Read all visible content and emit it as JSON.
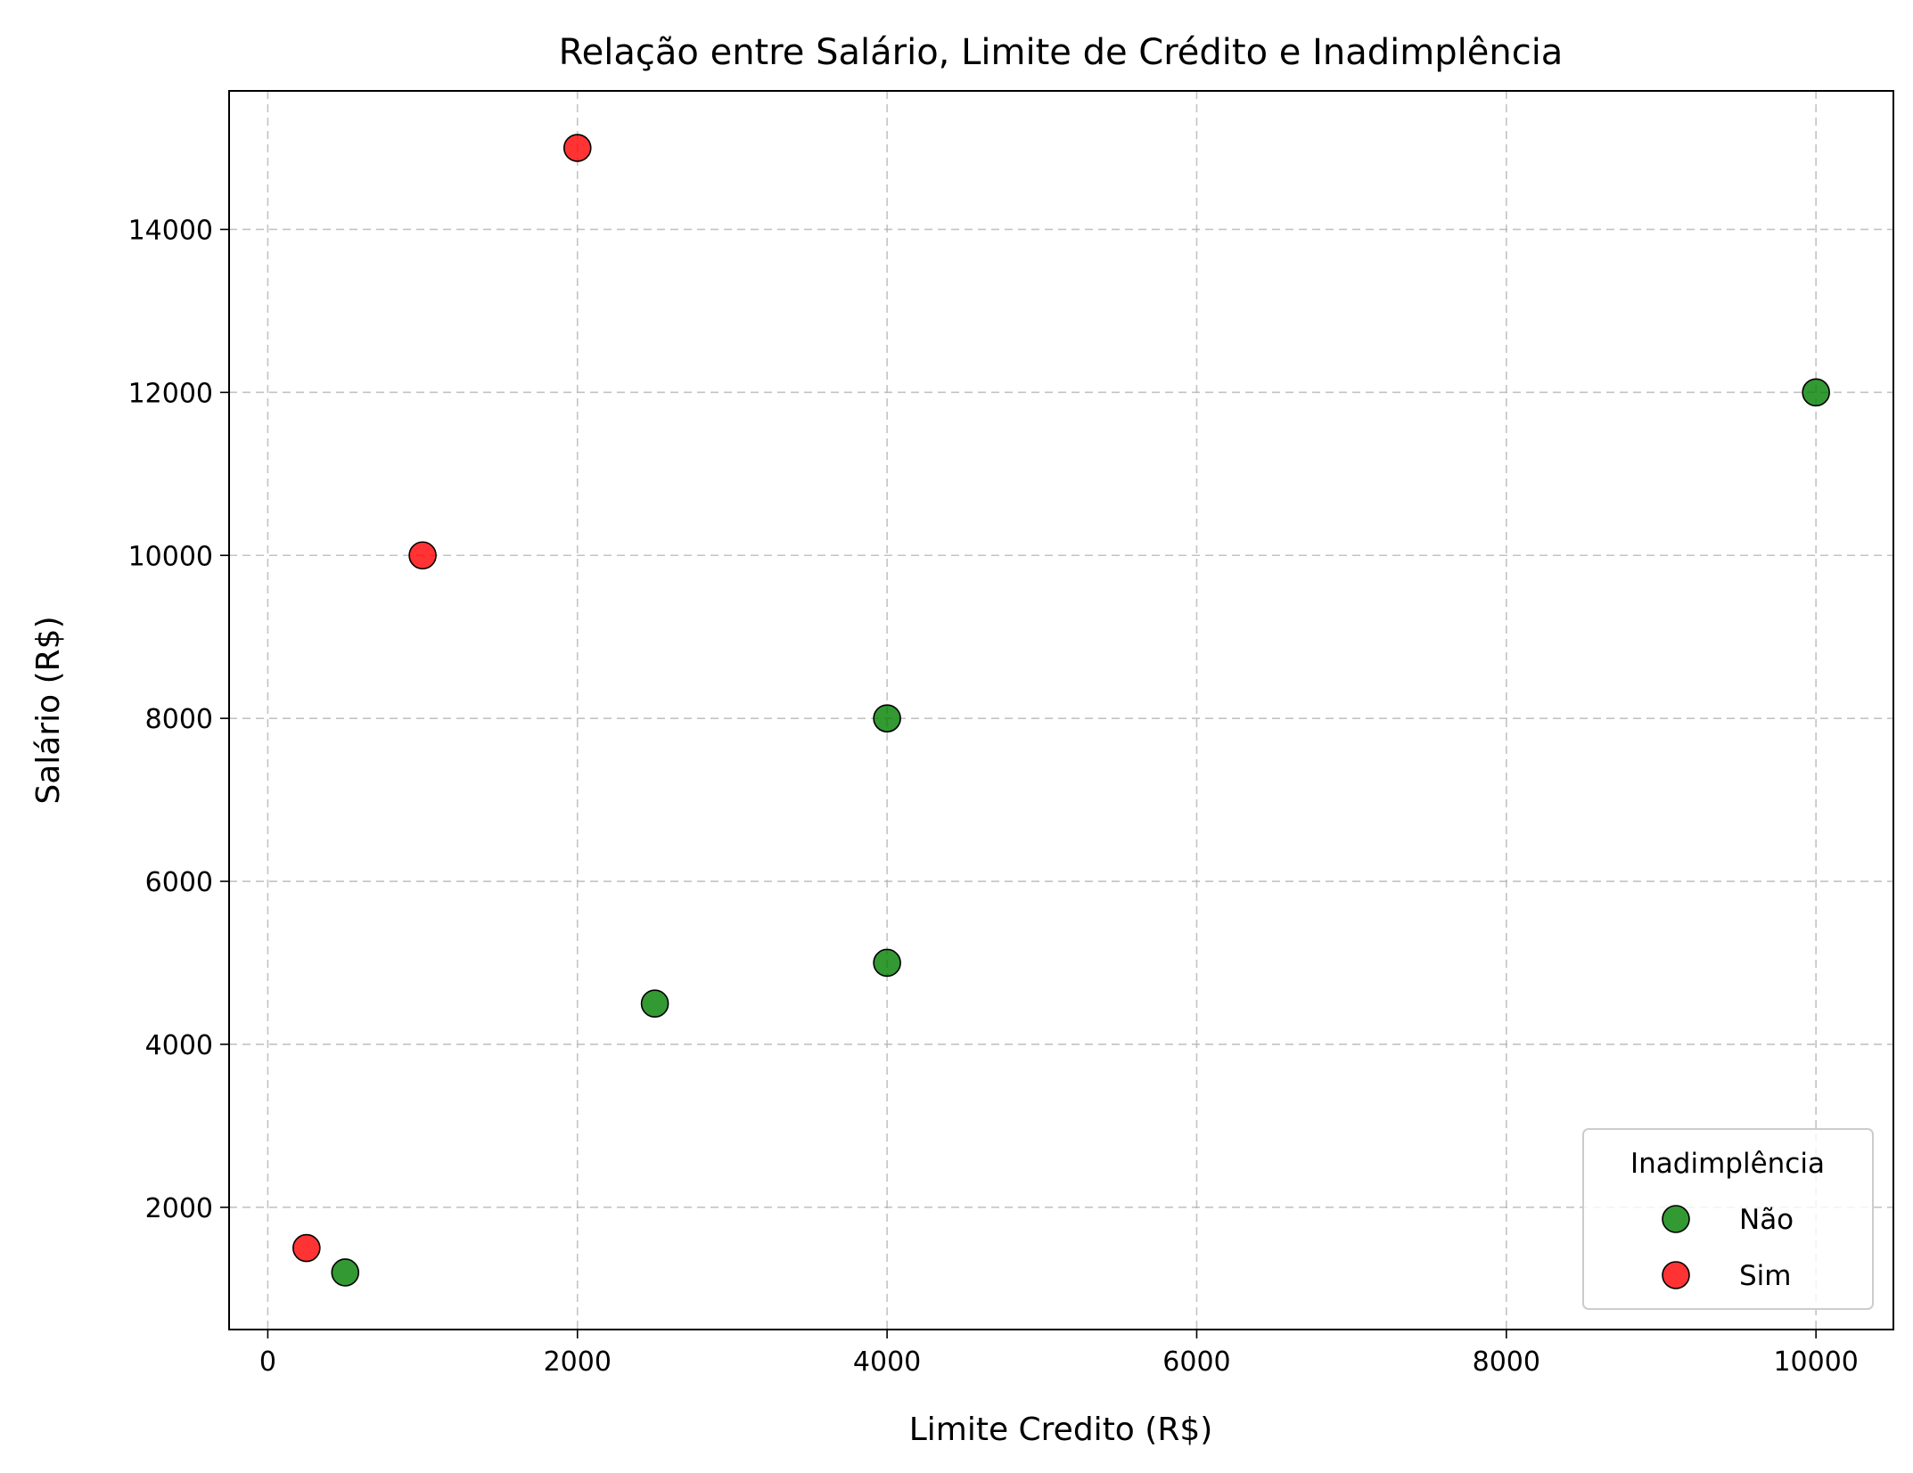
{
  "chart_data": {
    "type": "scatter",
    "title": "Relação entre Salário, Limite de Crédito e Inadimplência",
    "xlabel": "Limite Credito (R$)",
    "ylabel": "Salário (R$)",
    "xlim": [
      -250,
      10500
    ],
    "ylim": [
      500,
      15700
    ],
    "xticks": [
      0,
      2000,
      4000,
      6000,
      8000,
      10000
    ],
    "yticks": [
      2000,
      4000,
      6000,
      8000,
      10000,
      12000,
      14000
    ],
    "grid": true,
    "legend": {
      "title": "Inadimplência",
      "placement": "lower-right"
    },
    "series": [
      {
        "name": "Não",
        "color": "#008000",
        "points": [
          {
            "x": 500,
            "y": 1200
          },
          {
            "x": 2500,
            "y": 4500
          },
          {
            "x": 4000,
            "y": 5000
          },
          {
            "x": 4000,
            "y": 8000
          },
          {
            "x": 10000,
            "y": 12000
          }
        ]
      },
      {
        "name": "Sim",
        "color": "#ff0000",
        "points": [
          {
            "x": 250,
            "y": 1500
          },
          {
            "x": 1000,
            "y": 10000
          },
          {
            "x": 2000,
            "y": 15000
          }
        ]
      }
    ]
  }
}
